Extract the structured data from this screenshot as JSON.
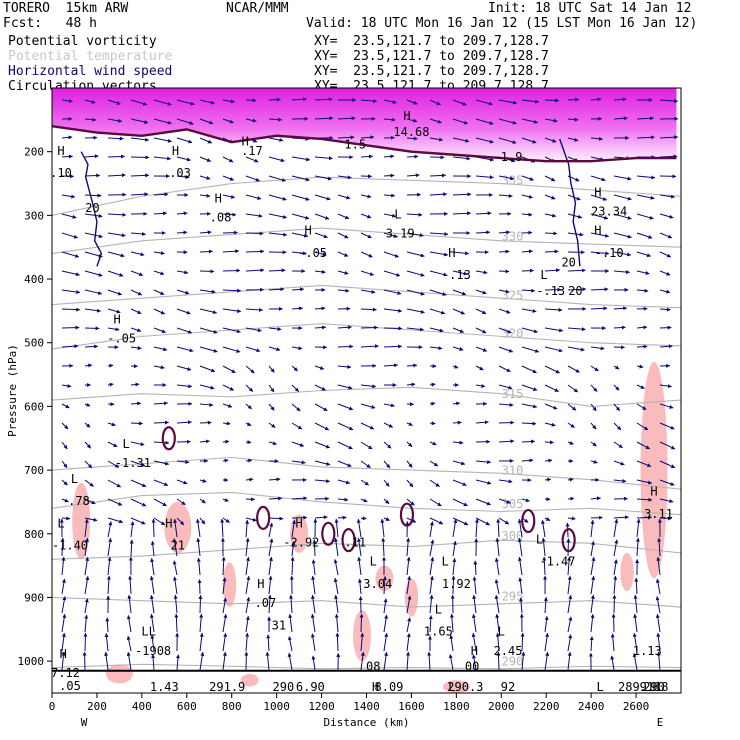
{
  "header": {
    "model": "TORERO  15km ARW",
    "org": "NCAR/MMM",
    "init": "Init: 18 UTC Sat 14 Jan 12",
    "fcst": "Fcst:   48 h",
    "valid": "Valid: 18 UTC Mon 16 Jan 12 (15 LST Mon 16 Jan 12)",
    "fields": [
      {
        "label": "Potential vorticity",
        "color": "#000000",
        "xy": "XY=  23.5,121.7 to 209.7,128.7"
      },
      {
        "label": "Potential temperature",
        "color": "#c8c8c8",
        "xy": "XY=  23.5,121.7 to 209.7,128.7"
      },
      {
        "label": "Horizontal wind speed",
        "color": "#0a0a78",
        "xy": "XY=  23.5,121.7 to 209.7,128.7"
      },
      {
        "label": "Circulation vectors",
        "color": "#000000",
        "xy": "XY=  23.5,121.7 to 209.7,128.7"
      }
    ]
  },
  "chart_data": {
    "type": "cross-section",
    "xlabel": "Distance (km)",
    "ylabel": "Pressure (hPa)",
    "xlim": [
      0,
      2800
    ],
    "ylim": [
      1050,
      100
    ],
    "x_ticks": [
      0,
      200,
      400,
      600,
      800,
      1000,
      1200,
      1400,
      1600,
      1800,
      2000,
      2200,
      2400,
      2600
    ],
    "y_ticks": [
      200,
      300,
      400,
      500,
      600,
      700,
      800,
      900,
      1000
    ],
    "left_end": "W",
    "right_end": "E",
    "colors": {
      "pv": "#5a0a3c",
      "theta": "#b4b4b4",
      "wind": "#0a0a78",
      "pv_shade": "#ff78ff",
      "pink": "#f8b4b4"
    },
    "theta_isentropes": [
      {
        "label": "290",
        "p": [
          1010,
          1005,
          1008,
          1012,
          1010,
          1012,
          1008,
          1010
        ]
      },
      {
        "label": "295",
        "p": [
          900,
          905,
          910,
          905,
          915,
          910,
          905,
          915
        ]
      },
      {
        "label": "300",
        "p": [
          840,
          835,
          825,
          815,
          820,
          810,
          815,
          830
        ]
      },
      {
        "label": "305",
        "p": [
          760,
          740,
          735,
          750,
          760,
          765,
          760,
          770
        ]
      },
      {
        "label": "310",
        "p": [
          700,
          690,
          680,
          695,
          700,
          705,
          715,
          730
        ]
      },
      {
        "label": "315",
        "p": [
          590,
          580,
          585,
          575,
          570,
          580,
          600,
          590
        ]
      },
      {
        "label": "320",
        "p": [
          510,
          490,
          480,
          470,
          480,
          490,
          500,
          505
        ]
      },
      {
        "label": "325",
        "p": [
          440,
          430,
          420,
          410,
          420,
          430,
          440,
          445
        ]
      },
      {
        "label": "330",
        "p": [
          360,
          340,
          330,
          320,
          330,
          340,
          345,
          350
        ]
      },
      {
        "label": "335",
        "p": [
          300,
          270,
          250,
          240,
          245,
          250,
          260,
          270
        ]
      }
    ],
    "tropopause_pv": [
      {
        "x": 0,
        "p": 160
      },
      {
        "x": 200,
        "p": 170
      },
      {
        "x": 400,
        "p": 175
      },
      {
        "x": 600,
        "p": 165
      },
      {
        "x": 800,
        "p": 185
      },
      {
        "x": 1000,
        "p": 175
      },
      {
        "x": 1200,
        "p": 180
      },
      {
        "x": 1400,
        "p": 190
      },
      {
        "x": 1600,
        "p": 200
      },
      {
        "x": 1800,
        "p": 205
      },
      {
        "x": 2000,
        "p": 210
      },
      {
        "x": 2200,
        "p": 215
      },
      {
        "x": 2400,
        "p": 215
      },
      {
        "x": 2600,
        "p": 210
      },
      {
        "x": 2780,
        "p": 210
      }
    ],
    "wind_contours": [
      {
        "x": [
          130,
          160,
          150,
          180,
          200,
          190,
          220,
          200
        ],
        "p": [
          200,
          220,
          240,
          280,
          310,
          340,
          360,
          380
        ]
      },
      {
        "x": [
          2260,
          2280,
          2300,
          2310,
          2330,
          2320,
          2340,
          2350
        ],
        "p": [
          180,
          200,
          220,
          250,
          280,
          310,
          340,
          380
        ]
      }
    ],
    "labels": [
      {
        "text": "H",
        "x": 40,
        "p": 205
      },
      {
        "text": ".10",
        "x": 40,
        "p": 240
      },
      {
        "text": "20",
        "x": 180,
        "p": 295
      },
      {
        "text": "H",
        "x": 550,
        "p": 205
      },
      {
        "text": ".03",
        "x": 570,
        "p": 240
      },
      {
        "text": "H",
        "x": 860,
        "p": 190
      },
      {
        "text": ".17",
        "x": 890,
        "p": 205
      },
      {
        "text": "H",
        "x": 740,
        "p": 280
      },
      {
        "text": ".08",
        "x": 750,
        "p": 310
      },
      {
        "text": "1.5",
        "x": 1350,
        "p": 195
      },
      {
        "text": "H",
        "x": 1580,
        "p": 150
      },
      {
        "text": "14.68",
        "x": 1600,
        "p": 175
      },
      {
        "text": "L",
        "x": 1540,
        "p": 305
      },
      {
        "text": "3.19",
        "x": 1550,
        "p": 335
      },
      {
        "text": "H",
        "x": 1140,
        "p": 330
      },
      {
        "text": "-.05",
        "x": 1160,
        "p": 365
      },
      {
        "text": "-1.9",
        "x": 2030,
        "p": 215
      },
      {
        "text": "H",
        "x": 1780,
        "p": 365
      },
      {
        "text": "-.13",
        "x": 1800,
        "p": 400
      },
      {
        "text": "H",
        "x": 2430,
        "p": 270
      },
      {
        "text": "23.34",
        "x": 2480,
        "p": 300
      },
      {
        "text": "H",
        "x": 2430,
        "p": 330
      },
      {
        "text": "-.10",
        "x": 2480,
        "p": 365
      },
      {
        "text": "L",
        "x": 2190,
        "p": 400
      },
      {
        "text": "-.13",
        "x": 2220,
        "p": 425
      },
      {
        "text": "20",
        "x": 2300,
        "p": 380
      },
      {
        "text": "20",
        "x": 2330,
        "p": 425
      },
      {
        "text": "H",
        "x": 290,
        "p": 470
      },
      {
        "text": "-.05",
        "x": 310,
        "p": 500
      },
      {
        "text": "L",
        "x": 330,
        "p": 665
      },
      {
        "text": "-1.31",
        "x": 360,
        "p": 695
      },
      {
        "text": "L",
        "x": 100,
        "p": 720
      },
      {
        "text": ".78",
        "x": 120,
        "p": 755
      },
      {
        "text": "L",
        "x": 40,
        "p": 790
      },
      {
        "text": "-1.40",
        "x": 80,
        "p": 825
      },
      {
        "text": "H",
        "x": 520,
        "p": 790
      },
      {
        "text": "21",
        "x": 560,
        "p": 825
      },
      {
        "text": "H",
        "x": 1100,
        "p": 790
      },
      {
        "text": "-2.92",
        "x": 1110,
        "p": 820
      },
      {
        "text": ".11",
        "x": 1350,
        "p": 820
      },
      {
        "text": "L",
        "x": 1430,
        "p": 850
      },
      {
        "text": "3.04",
        "x": 1450,
        "p": 885
      },
      {
        "text": "L",
        "x": 1750,
        "p": 850
      },
      {
        "text": "1.92",
        "x": 1800,
        "p": 885
      },
      {
        "text": "L",
        "x": 2170,
        "p": 815
      },
      {
        "text": "-1.47",
        "x": 2250,
        "p": 850
      },
      {
        "text": "H",
        "x": 2680,
        "p": 740
      },
      {
        "text": "3.11",
        "x": 2700,
        "p": 775
      },
      {
        "text": "H",
        "x": 930,
        "p": 885
      },
      {
        "text": ".07",
        "x": 950,
        "p": 915
      },
      {
        "text": "31",
        "x": 1010,
        "p": 950
      },
      {
        "text": "L",
        "x": 1720,
        "p": 925
      },
      {
        "text": "1.65",
        "x": 1720,
        "p": 960
      },
      {
        "text": "L",
        "x": 2000,
        "p": 960
      },
      {
        "text": "2.45",
        "x": 2030,
        "p": 990
      },
      {
        "text": "LL",
        "x": 430,
        "p": 960
      },
      {
        "text": "-1908",
        "x": 450,
        "p": 990
      },
      {
        "text": "H",
        "x": 50,
        "p": 995
      },
      {
        "text": "7.12",
        "x": 60,
        "p": 1025
      },
      {
        "text": ".05",
        "x": 80,
        "p": 1045
      },
      {
        "text": "H",
        "x": 1880,
        "p": 990
      },
      {
        "text": "00",
        "x": 1870,
        "p": 1015
      },
      {
        "text": "08",
        "x": 1430,
        "p": 1015
      },
      {
        "text": "1.13",
        "x": 2650,
        "p": 990
      },
      {
        "text": "H",
        "x": 1440,
        "p": 1095
      },
      {
        "text": "6.90",
        "x": 1150,
        "p": 1115
      },
      {
        "text": "8.09",
        "x": 1500,
        "p": 1115
      },
      {
        "text": "L",
        "x": 1780,
        "p": 1105
      },
      {
        "text": "92",
        "x": 2030,
        "p": 1115
      },
      {
        "text": "L",
        "x": 2440,
        "p": 1105
      },
      {
        "text": "H",
        "x": 2690,
        "p": 1095
      },
      {
        "text": "9.18",
        "x": 2680,
        "p": 1115
      },
      {
        "text": "1.43",
        "x": 500,
        "p": 1110
      },
      {
        "text": "291.9",
        "x": 780,
        "p": 1120
      },
      {
        "text": "290",
        "x": 1030,
        "p": 1120
      },
      {
        "text": "290.3",
        "x": 1840,
        "p": 1120
      },
      {
        "text": "289.1",
        "x": 2600,
        "p": 1120
      },
      {
        "text": "290",
        "x": 2680,
        "p": 1120
      }
    ]
  }
}
